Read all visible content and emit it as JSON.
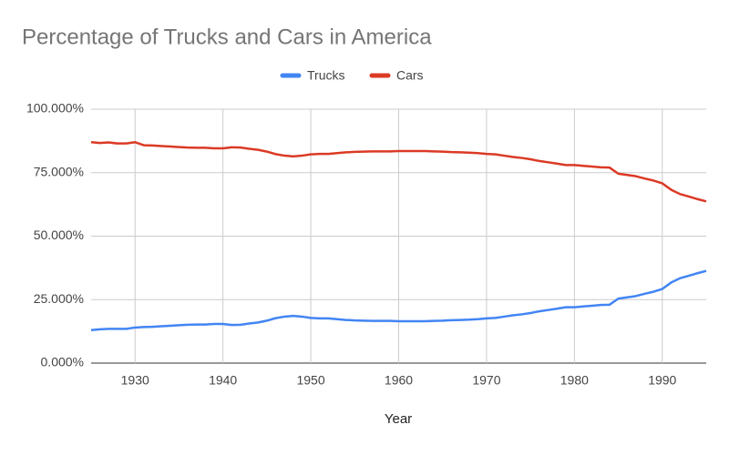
{
  "chart_data": {
    "type": "line",
    "title": "Percentage of Trucks and Cars in America",
    "x_label": "Year",
    "x": [
      1925,
      1926,
      1927,
      1928,
      1929,
      1930,
      1931,
      1932,
      1933,
      1934,
      1935,
      1936,
      1937,
      1938,
      1939,
      1940,
      1941,
      1942,
      1943,
      1944,
      1945,
      1946,
      1947,
      1948,
      1949,
      1950,
      1951,
      1952,
      1953,
      1954,
      1955,
      1956,
      1957,
      1958,
      1959,
      1960,
      1961,
      1962,
      1963,
      1964,
      1965,
      1966,
      1967,
      1968,
      1969,
      1970,
      1971,
      1972,
      1973,
      1974,
      1975,
      1976,
      1977,
      1978,
      1979,
      1980,
      1981,
      1982,
      1983,
      1984,
      1985,
      1986,
      1987,
      1988,
      1989,
      1990,
      1991,
      1992,
      1993,
      1994,
      1995
    ],
    "series": [
      {
        "name": "Trucks",
        "color": "#4285f4",
        "values": [
          13.0,
          13.3,
          13.5,
          13.5,
          13.5,
          14.0,
          14.2,
          14.3,
          14.5,
          14.7,
          14.9,
          15.1,
          15.2,
          15.2,
          15.4,
          15.4,
          15.0,
          15.1,
          15.6,
          16.0,
          16.7,
          17.7,
          18.3,
          18.6,
          18.3,
          17.8,
          17.6,
          17.6,
          17.3,
          17.0,
          16.8,
          16.7,
          16.6,
          16.6,
          16.6,
          16.5,
          16.5,
          16.5,
          16.5,
          16.6,
          16.7,
          16.9,
          17.0,
          17.1,
          17.3,
          17.6,
          17.8,
          18.3,
          18.8,
          19.2,
          19.7,
          20.4,
          20.9,
          21.4,
          22.0,
          22.0,
          22.3,
          22.6,
          22.9,
          23.0,
          25.4,
          25.9,
          26.4,
          27.3,
          28.1,
          29.2,
          31.7,
          33.4,
          34.4,
          35.4,
          36.3
        ]
      },
      {
        "name": "Cars",
        "color": "#db3a25",
        "values": [
          87.0,
          86.7,
          86.9,
          86.5,
          86.5,
          87.0,
          85.8,
          85.7,
          85.5,
          85.3,
          85.1,
          84.9,
          84.8,
          84.8,
          84.6,
          84.6,
          85.0,
          84.9,
          84.4,
          84.0,
          83.3,
          82.3,
          81.7,
          81.4,
          81.7,
          82.2,
          82.4,
          82.4,
          82.7,
          83.0,
          83.2,
          83.3,
          83.4,
          83.4,
          83.4,
          83.5,
          83.5,
          83.5,
          83.5,
          83.4,
          83.3,
          83.1,
          83.0,
          82.9,
          82.7,
          82.4,
          82.2,
          81.7,
          81.2,
          80.8,
          80.3,
          79.6,
          79.1,
          78.6,
          78.0,
          78.0,
          77.7,
          77.4,
          77.1,
          77.0,
          74.6,
          74.1,
          73.6,
          72.7,
          71.9,
          70.8,
          68.3,
          66.6,
          65.6,
          64.6,
          63.7
        ]
      }
    ],
    "xlim": [
      1925,
      1995
    ],
    "xticks": [
      1930,
      1940,
      1950,
      1960,
      1970,
      1980,
      1990
    ],
    "ylim": [
      0,
      100
    ],
    "yticks": [
      {
        "value": 0,
        "label": "0.000%"
      },
      {
        "value": 25,
        "label": "25.000%"
      },
      {
        "value": 50,
        "label": "50.000%"
      },
      {
        "value": 75,
        "label": "75.000%"
      },
      {
        "value": 100,
        "label": "100.000%"
      }
    ],
    "grid": true,
    "legend": "top"
  }
}
